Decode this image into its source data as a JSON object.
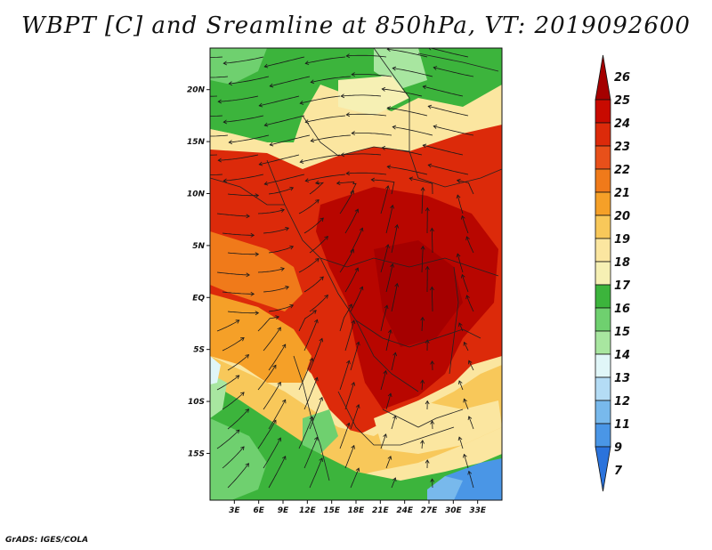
{
  "title": "WBPT [C] and Sreamline at 850hPa, VT: 2019092600",
  "credit": "GrADS: IGES/COLA",
  "map": {
    "lat_labels": [
      {
        "label": "20N",
        "lat": 20
      },
      {
        "label": "15N",
        "lat": 15
      },
      {
        "label": "10N",
        "lat": 10
      },
      {
        "label": "5N",
        "lat": 5
      },
      {
        "label": "EQ",
        "lat": 0
      },
      {
        "label": "5S",
        "lat": -5
      },
      {
        "label": "10S",
        "lat": -10
      },
      {
        "label": "15S",
        "lat": -15
      }
    ],
    "lon_labels": [
      {
        "label": "3E",
        "lon": 3
      },
      {
        "label": "6E",
        "lon": 6
      },
      {
        "label": "9E",
        "lon": 9
      },
      {
        "label": "12E",
        "lon": 12
      },
      {
        "label": "15E",
        "lon": 15
      },
      {
        "label": "18E",
        "lon": 18
      },
      {
        "label": "21E",
        "lon": 21
      },
      {
        "label": "24E",
        "lon": 24
      },
      {
        "label": "27E",
        "lon": 27
      },
      {
        "label": "30E",
        "lon": 30
      },
      {
        "label": "33E",
        "lon": 33
      }
    ]
  },
  "colorbar": {
    "labels": [
      "26",
      "25",
      "24",
      "23",
      "22",
      "21",
      "20",
      "19",
      "18",
      "17",
      "16",
      "15",
      "14",
      "13",
      "12",
      "11",
      "9",
      "7"
    ],
    "colors": [
      "#a50000",
      "#c80a00",
      "#dc2a0a",
      "#e8501a",
      "#f07a1a",
      "#f5a028",
      "#f8c85a",
      "#fbe6a0",
      "#f6f0b4",
      "#3cb43c",
      "#6fd06f",
      "#a8e6a0",
      "#e0f6f8",
      "#b4dcf5",
      "#78b9ec",
      "#4a96e6",
      "#2b73dc"
    ]
  },
  "regions": [
    {
      "name": "sahara-green-north",
      "color": "#3cb43c"
    },
    {
      "name": "sahel-tan-band",
      "color": "#fbe6a0"
    },
    {
      "name": "central-africa-red",
      "color": "#c80a00"
    },
    {
      "name": "congo-deep-red",
      "color": "#a50000"
    },
    {
      "name": "gulf-orange",
      "color": "#f07a1a"
    },
    {
      "name": "angola-tan",
      "color": "#f8c85a"
    },
    {
      "name": "south-green",
      "color": "#6fd06f"
    },
    {
      "name": "se-blue",
      "color": "#4a96e6"
    }
  ]
}
